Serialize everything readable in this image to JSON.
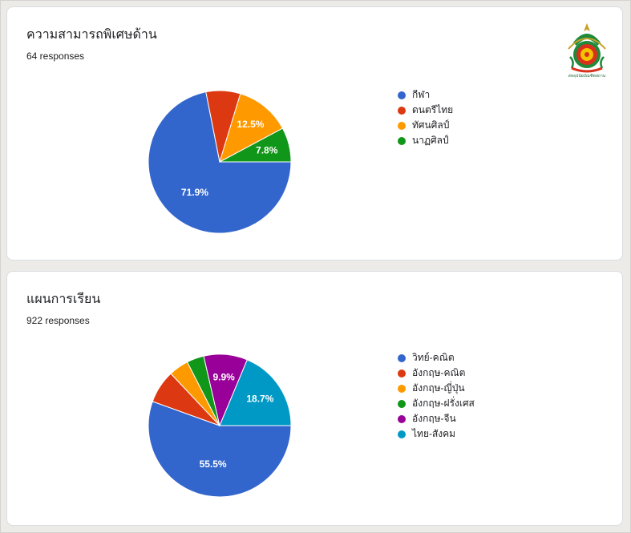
{
  "charts": [
    {
      "title": "ความสามารถพิเศษด้าน",
      "responses": "64 responses",
      "legend": [
        "กีฬา",
        "ดนตรีไทย",
        "ทัศนศิลป์",
        "นาฏศิลป์"
      ]
    },
    {
      "title": "แผนการเรียน",
      "responses": "922 responses",
      "legend": [
        "วิทย์-คณิต",
        "อังกฤษ-คณิต",
        "อังกฤษ-ญี่ปุ่น",
        "อังกฤษ-ฝรั่งเศส",
        "อังกฤษ-จีน",
        "ไทย-สังคม"
      ]
    }
  ],
  "logo_text": "สหอุปนัยบัณฑิตสถาน",
  "chart_data": [
    {
      "type": "pie",
      "title": "ความสามารถพิเศษด้าน",
      "categories": [
        "กีฬา",
        "ดนตรีไทย",
        "ทัศนศิลป์",
        "นาฏศิลป์"
      ],
      "values": [
        71.9,
        7.8,
        12.5,
        7.8
      ],
      "labels": [
        "71.9%",
        "",
        "12.5%",
        "7.8%"
      ],
      "colors": [
        "#3366cc",
        "#dc3912",
        "#ff9900",
        "#109618"
      ],
      "legend_position": "right"
    },
    {
      "type": "pie",
      "title": "แผนการเรียน",
      "categories": [
        "วิทย์-คณิต",
        "อังกฤษ-คณิต",
        "อังกฤษ-ญี่ปุ่น",
        "อังกฤษ-ฝรั่งเศส",
        "อังกฤษ-จีน",
        "ไทย-สังคม"
      ],
      "values": [
        55.5,
        7.5,
        4.5,
        3.9,
        9.9,
        18.7
      ],
      "labels": [
        "55.5%",
        "",
        "",
        "",
        "9.9%",
        "18.7%"
      ],
      "colors": [
        "#3366cc",
        "#dc3912",
        "#ff9900",
        "#109618",
        "#990099",
        "#0099c6"
      ],
      "legend_position": "right"
    }
  ]
}
